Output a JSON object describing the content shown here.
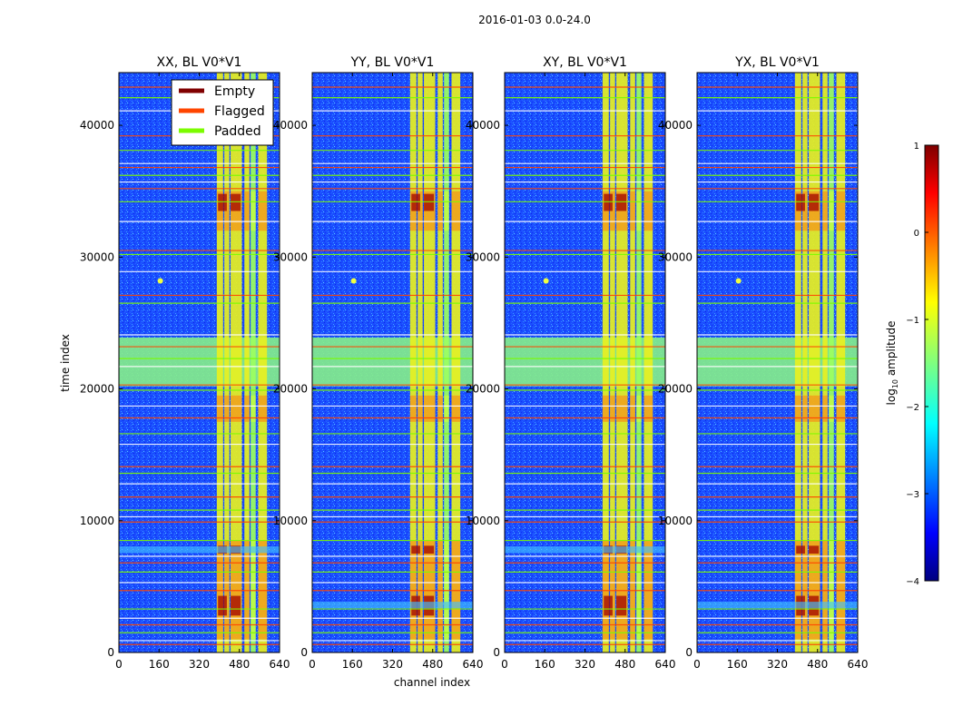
{
  "chart_data": {
    "type": "heatmap",
    "suptitle": "2016-01-03 0.0-24.0",
    "xlabel": "channel index",
    "ylabel": "time index",
    "xlim": [
      0,
      640
    ],
    "ylim": [
      0,
      44000
    ],
    "xticks": [
      0,
      160,
      320,
      480,
      640
    ],
    "yticks": [
      0,
      10000,
      20000,
      30000,
      40000
    ],
    "panels": [
      {
        "title": "XX, BL V0*V1",
        "drift_band": 7800
      },
      {
        "title": "YY, BL V0*V1",
        "drift_band": 3600
      },
      {
        "title": "XY, BL V0*V1",
        "drift_band": 7800
      },
      {
        "title": "YX, BL V0*V1",
        "drift_band": 3600
      }
    ],
    "legend": [
      {
        "label": "Empty",
        "color": "#800000"
      },
      {
        "label": "Flagged",
        "color": "#ff4500"
      },
      {
        "label": "Padded",
        "color": "#7cfc00"
      }
    ],
    "legend_location": "top-right of first panel",
    "colorbar": {
      "label_prefix": "log",
      "label_sub": "10",
      "label_suffix": " amplitude",
      "range": [
        -4,
        1
      ],
      "ticks": [
        "1",
        "0",
        "−1",
        "−2",
        "−3",
        "−4"
      ],
      "colormap": "jet"
    },
    "rfi_channel_bands": [
      {
        "from": 390,
        "to": 415,
        "level": "high"
      },
      {
        "from": 420,
        "to": 440,
        "level": "high"
      },
      {
        "from": 445,
        "to": 490,
        "level": "high"
      },
      {
        "from": 500,
        "to": 520,
        "level": "high"
      },
      {
        "from": 525,
        "to": 545,
        "level": "medium"
      },
      {
        "from": 555,
        "to": 590,
        "level": "high"
      }
    ],
    "flagged_time_rows": [
      600,
      900,
      1500,
      2100,
      2600,
      3300,
      4700,
      5300,
      6100,
      6800,
      7300,
      8500,
      9900,
      10300,
      10800,
      11800,
      12800,
      13600,
      14100,
      15800,
      16600,
      17800,
      18700,
      19900,
      20300,
      21700,
      22300,
      23200,
      24100,
      26500,
      27100,
      28900,
      30200,
      30500,
      32700,
      34200,
      35200,
      35700,
      36200,
      36800,
      37100,
      38100,
      39200,
      41100,
      42100,
      42900
    ],
    "padded_time_range": [
      20200,
      23900
    ]
  }
}
